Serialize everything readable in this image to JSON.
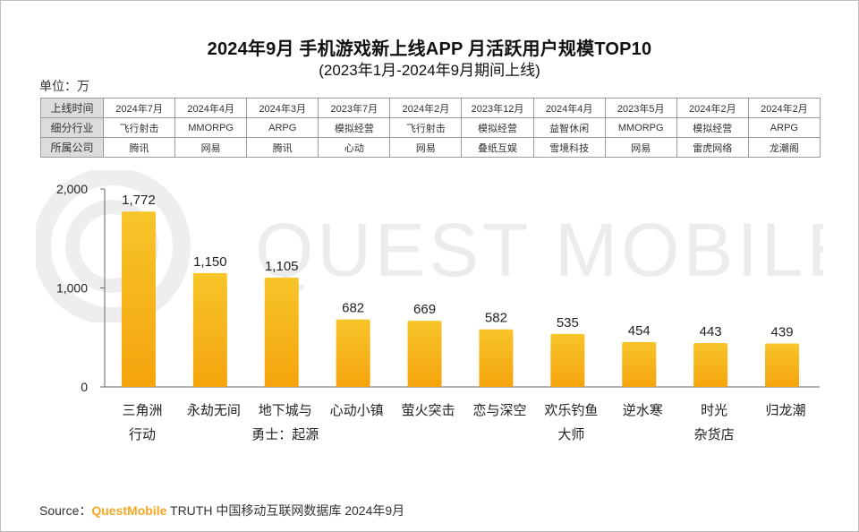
{
  "title": "2024年9月 手机游戏新上线APP 月活跃用户规模TOP10",
  "subtitle": "(2023年1月-2024年9月期间上线)",
  "unit_label": "单位：万",
  "watermark": "QUEST MOBILE",
  "table": {
    "row_headers": [
      "上线时间",
      "细分行业",
      "所属公司"
    ],
    "rows": [
      [
        "2024年7月",
        "2024年4月",
        "2024年3月",
        "2023年7月",
        "2024年2月",
        "2023年12月",
        "2024年4月",
        "2023年5月",
        "2024年2月",
        "2024年2月"
      ],
      [
        "飞行射击",
        "MMORPG",
        "ARPG",
        "模拟经营",
        "飞行射击",
        "模拟经营",
        "益智休闲",
        "MMORPG",
        "模拟经营",
        "ARPG"
      ],
      [
        "腾讯",
        "网易",
        "腾讯",
        "心动",
        "网易",
        "叠纸互娱",
        "雪境科技",
        "网易",
        "雷虎网络",
        "龙潮阁"
      ]
    ]
  },
  "chart_data": {
    "type": "bar",
    "title": "2024年9月 手机游戏新上线APP 月活跃用户规模TOP10",
    "ylabel": "万",
    "ylim": [
      0,
      2000
    ],
    "yticks": [
      0,
      1000,
      2000
    ],
    "ytick_labels": [
      "0",
      "1,000",
      "2,000"
    ],
    "categories": [
      [
        "三角洲",
        "行动"
      ],
      [
        "永劫无间"
      ],
      [
        "地下城与",
        "勇士：起源"
      ],
      [
        "心动小镇"
      ],
      [
        "萤火突击"
      ],
      [
        "恋与深空"
      ],
      [
        "欢乐钓鱼",
        "大师"
      ],
      [
        "逆水寒"
      ],
      [
        "时光",
        "杂货店"
      ],
      [
        "归龙潮"
      ]
    ],
    "values": [
      1772,
      1150,
      1105,
      682,
      669,
      582,
      535,
      454,
      443,
      439
    ],
    "value_labels": [
      "1,772",
      "1,150",
      "1,105",
      "682",
      "669",
      "582",
      "535",
      "454",
      "443",
      "439"
    ]
  },
  "source": {
    "prefix": "Source：",
    "brand": "QuestMobile",
    "text": " TRUTH 中国移动互联网数据库 2024年9月"
  },
  "colors": {
    "bar_top": "#f7c52a",
    "bar_bottom": "#f5a40d",
    "brand": "#f5a623",
    "watermark": "#ececec"
  }
}
